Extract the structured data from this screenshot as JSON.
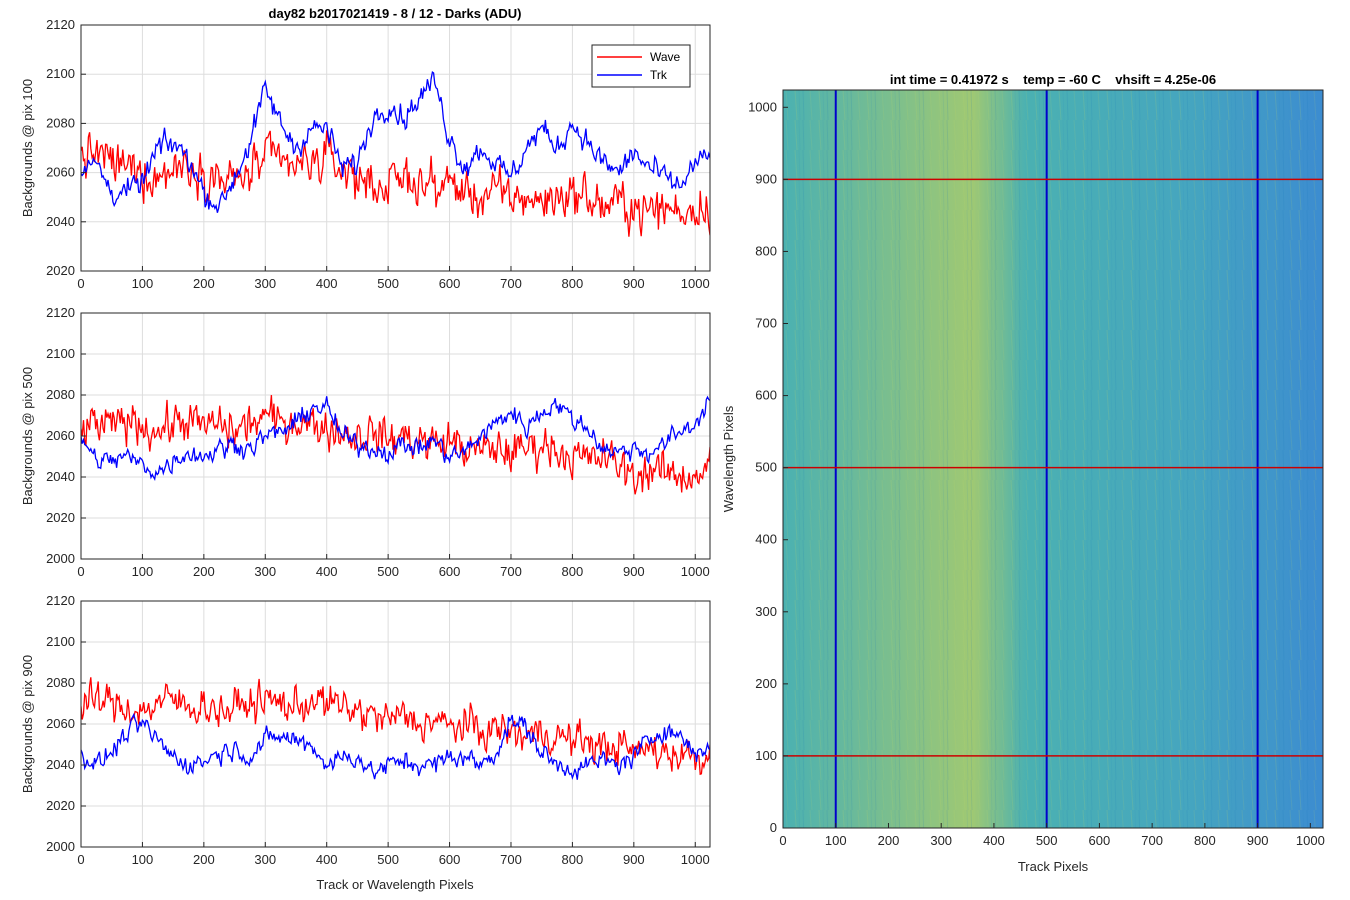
{
  "figure_title": "day82 b2017021419 - 8 / 12 - Darks (ADU)",
  "colors": {
    "wave": "#ff0000",
    "trk": "#0000ff",
    "grid": "#dddddd",
    "axis": "#262626",
    "image_low": "#1a78c8",
    "image_mid": "#2ba3a4",
    "image_high": "#8fbf5a"
  },
  "chart_data": [
    {
      "type": "line",
      "ylabel": "Backgrounds @ pix 100",
      "xlabel": "",
      "xlim": [
        0,
        1024
      ],
      "ylim": [
        2020,
        2120
      ],
      "xticks": [
        0,
        100,
        200,
        300,
        400,
        500,
        600,
        700,
        800,
        900,
        1000
      ],
      "yticks": [
        2020,
        2040,
        2060,
        2080,
        2100,
        2120
      ],
      "grid": true,
      "legend": "top-right",
      "series": [
        {
          "name": "Wave",
          "color": "#ff0000",
          "x": [
            0,
            25,
            50,
            75,
            100,
            125,
            150,
            175,
            200,
            225,
            250,
            275,
            300,
            325,
            350,
            375,
            400,
            425,
            450,
            475,
            500,
            525,
            550,
            575,
            600,
            625,
            650,
            675,
            700,
            725,
            750,
            775,
            800,
            825,
            850,
            875,
            900,
            925,
            950,
            975,
            1000,
            1023
          ],
          "values": [
            2066,
            2068,
            2064,
            2062,
            2060,
            2058,
            2062,
            2064,
            2060,
            2058,
            2056,
            2060,
            2066,
            2064,
            2062,
            2064,
            2066,
            2062,
            2058,
            2056,
            2054,
            2058,
            2056,
            2054,
            2056,
            2052,
            2050,
            2052,
            2050,
            2050,
            2048,
            2050,
            2052,
            2050,
            2046,
            2048,
            2046,
            2044,
            2046,
            2044,
            2046,
            2046
          ],
          "noise": 11
        },
        {
          "name": "Trk",
          "color": "#0000ff",
          "x": [
            0,
            25,
            50,
            75,
            100,
            125,
            150,
            175,
            200,
            225,
            250,
            275,
            300,
            325,
            350,
            375,
            400,
            425,
            450,
            475,
            500,
            525,
            550,
            575,
            600,
            625,
            650,
            675,
            700,
            725,
            750,
            775,
            800,
            825,
            850,
            875,
            900,
            925,
            950,
            975,
            1000,
            1023
          ],
          "values": [
            2060,
            2064,
            2052,
            2052,
            2056,
            2070,
            2072,
            2066,
            2052,
            2046,
            2058,
            2072,
            2094,
            2080,
            2070,
            2078,
            2078,
            2062,
            2064,
            2082,
            2088,
            2082,
            2090,
            2098,
            2074,
            2062,
            2070,
            2064,
            2058,
            2070,
            2078,
            2070,
            2080,
            2072,
            2064,
            2060,
            2068,
            2062,
            2058,
            2054,
            2064,
            2066
          ],
          "noise": 6
        }
      ]
    },
    {
      "type": "line",
      "ylabel": "Backgrounds @ pix 500",
      "xlabel": "",
      "xlim": [
        0,
        1024
      ],
      "ylim": [
        2000,
        2120
      ],
      "xticks": [
        0,
        100,
        200,
        300,
        400,
        500,
        600,
        700,
        800,
        900,
        1000
      ],
      "yticks": [
        2000,
        2020,
        2040,
        2060,
        2080,
        2100,
        2120
      ],
      "grid": true,
      "series": [
        {
          "name": "Wave",
          "color": "#ff0000",
          "x": [
            0,
            25,
            50,
            75,
            100,
            125,
            150,
            175,
            200,
            225,
            250,
            275,
            300,
            325,
            350,
            375,
            400,
            425,
            450,
            475,
            500,
            525,
            550,
            575,
            600,
            625,
            650,
            675,
            700,
            725,
            750,
            775,
            800,
            825,
            850,
            875,
            900,
            925,
            950,
            975,
            1000,
            1023
          ],
          "values": [
            2062,
            2066,
            2064,
            2068,
            2066,
            2062,
            2066,
            2068,
            2064,
            2066,
            2062,
            2066,
            2070,
            2066,
            2068,
            2066,
            2064,
            2062,
            2060,
            2062,
            2058,
            2060,
            2058,
            2056,
            2058,
            2054,
            2052,
            2054,
            2052,
            2054,
            2056,
            2054,
            2050,
            2048,
            2050,
            2046,
            2040,
            2044,
            2042,
            2040,
            2042,
            2044
          ],
          "noise": 12
        },
        {
          "name": "Trk",
          "color": "#0000ff",
          "x": [
            0,
            25,
            50,
            75,
            100,
            125,
            150,
            175,
            200,
            225,
            250,
            275,
            300,
            325,
            350,
            375,
            400,
            425,
            450,
            475,
            500,
            525,
            550,
            575,
            600,
            625,
            650,
            675,
            700,
            725,
            750,
            775,
            800,
            825,
            850,
            875,
            900,
            925,
            950,
            975,
            1000,
            1023
          ],
          "values": [
            2060,
            2048,
            2048,
            2050,
            2046,
            2042,
            2048,
            2052,
            2050,
            2054,
            2056,
            2054,
            2060,
            2062,
            2066,
            2074,
            2074,
            2060,
            2056,
            2054,
            2052,
            2056,
            2054,
            2058,
            2050,
            2052,
            2060,
            2066,
            2072,
            2064,
            2072,
            2076,
            2068,
            2064,
            2054,
            2052,
            2054,
            2052,
            2056,
            2062,
            2066,
            2078
          ],
          "noise": 6
        }
      ]
    },
    {
      "type": "line",
      "ylabel": "Backgrounds @ pix 900",
      "xlabel": "Track or Wavelength Pixels",
      "xlim": [
        0,
        1024
      ],
      "ylim": [
        2000,
        2120
      ],
      "xticks": [
        0,
        100,
        200,
        300,
        400,
        500,
        600,
        700,
        800,
        900,
        1000
      ],
      "yticks": [
        2000,
        2020,
        2040,
        2060,
        2080,
        2100,
        2120
      ],
      "grid": true,
      "series": [
        {
          "name": "Wave",
          "color": "#ff0000",
          "x": [
            0,
            25,
            50,
            75,
            100,
            125,
            150,
            175,
            200,
            225,
            250,
            275,
            300,
            325,
            350,
            375,
            400,
            425,
            450,
            475,
            500,
            525,
            550,
            575,
            600,
            625,
            650,
            675,
            700,
            725,
            750,
            775,
            800,
            825,
            850,
            875,
            900,
            925,
            950,
            975,
            1000,
            1023
          ],
          "values": [
            2068,
            2072,
            2070,
            2068,
            2066,
            2070,
            2072,
            2068,
            2070,
            2066,
            2068,
            2070,
            2072,
            2070,
            2068,
            2072,
            2070,
            2068,
            2066,
            2064,
            2062,
            2064,
            2060,
            2062,
            2058,
            2060,
            2056,
            2058,
            2056,
            2054,
            2056,
            2054,
            2052,
            2052,
            2048,
            2050,
            2046,
            2048,
            2046,
            2046,
            2044,
            2044
          ],
          "noise": 11
        },
        {
          "name": "Trk",
          "color": "#0000ff",
          "x": [
            0,
            25,
            50,
            75,
            100,
            125,
            150,
            175,
            200,
            225,
            250,
            275,
            300,
            325,
            350,
            375,
            400,
            425,
            450,
            475,
            500,
            525,
            550,
            575,
            600,
            625,
            650,
            675,
            700,
            725,
            750,
            775,
            800,
            825,
            850,
            875,
            900,
            925,
            950,
            975,
            1000,
            1023
          ],
          "values": [
            2046,
            2040,
            2046,
            2056,
            2060,
            2052,
            2044,
            2040,
            2042,
            2046,
            2048,
            2044,
            2052,
            2054,
            2052,
            2050,
            2040,
            2044,
            2044,
            2036,
            2040,
            2042,
            2040,
            2040,
            2044,
            2044,
            2040,
            2046,
            2062,
            2058,
            2046,
            2040,
            2038,
            2040,
            2042,
            2040,
            2044,
            2052,
            2058,
            2054,
            2046,
            2048
          ],
          "noise": 6
        }
      ]
    },
    {
      "type": "heatmap",
      "title": "int time = 0.41972 s    temp = -60 C    vhsift = 4.25e-06",
      "xlabel": "Track Pixels",
      "ylabel": "Wavelength Pixels",
      "xlim": [
        0,
        1024
      ],
      "ylim": [
        0,
        1024
      ],
      "xticks": [
        0,
        100,
        200,
        300,
        400,
        500,
        600,
        700,
        800,
        900,
        1000
      ],
      "yticks": [
        0,
        100,
        200,
        300,
        400,
        500,
        600,
        700,
        800,
        900,
        1000
      ],
      "vertical_markers": [
        100,
        500,
        900
      ],
      "horizontal_markers": [
        100,
        500,
        900
      ],
      "vertical_marker_color": "#0000cc",
      "horizontal_marker_color": "#cc0000"
    }
  ]
}
